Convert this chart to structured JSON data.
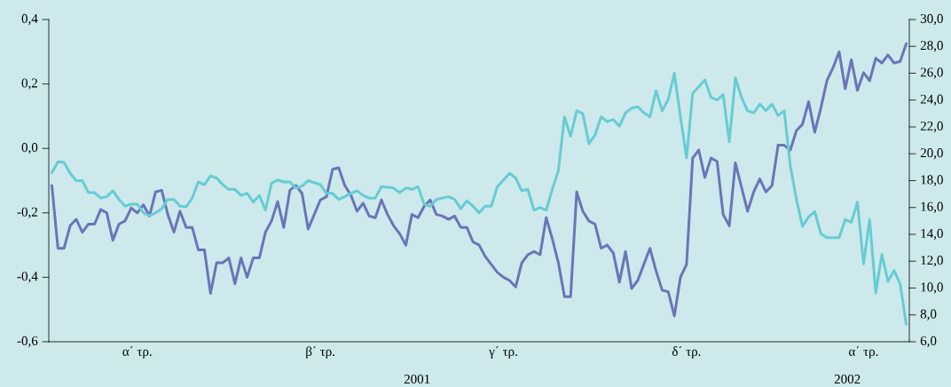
{
  "chart_data": {
    "type": "line",
    "categories": [
      null,
      null,
      null,
      null,
      null,
      null,
      null,
      null,
      null,
      null,
      null,
      null,
      null,
      null,
      "α΄ τρ.",
      null,
      null,
      null,
      null,
      null,
      null,
      null,
      null,
      null,
      null,
      null,
      null,
      null,
      null,
      null,
      null,
      null,
      null,
      null,
      null,
      null,
      null,
      null,
      null,
      null,
      null,
      null,
      null,
      null,
      "β΄ τρ.",
      null,
      null,
      null,
      null,
      null,
      null,
      null,
      null,
      null,
      null,
      null,
      null,
      null,
      null,
      null,
      null,
      null,
      null,
      null,
      null,
      null,
      null,
      null,
      null,
      null,
      null,
      null,
      null,
      null,
      "γ΄ τρ.",
      null,
      null,
      null,
      null,
      null,
      null,
      null,
      null,
      null,
      null,
      null,
      null,
      null,
      null,
      null,
      null,
      null,
      null,
      null,
      null,
      null,
      null,
      null,
      null,
      null,
      null,
      null,
      null,
      null,
      "δ΄ τρ.",
      null,
      null,
      null,
      null,
      null,
      null,
      null,
      null,
      null,
      null,
      null,
      null,
      null,
      null,
      null,
      null,
      null,
      null,
      null,
      null,
      null,
      null,
      null,
      null,
      null,
      null,
      null,
      null,
      "α΄ τρ.",
      null,
      null,
      null,
      null,
      null,
      null,
      null
    ],
    "ylim": [
      -0.6,
      0.4
    ],
    "yticks": [
      {
        "value": -0.6,
        "label": "-0,6"
      },
      {
        "value": -0.4,
        "label": "-0,4"
      },
      {
        "value": -0.2,
        "label": "-0,2"
      },
      {
        "value": 0.0,
        "label": "0,0"
      },
      {
        "value": 0.2,
        "label": "0,2"
      },
      {
        "value": 0.4,
        "label": "0,4"
      }
    ],
    "y2lim": [
      6,
      30
    ],
    "y2ticks": [
      {
        "value": 6,
        "label": "6,0"
      },
      {
        "value": 8,
        "label": "8,0"
      },
      {
        "value": 10,
        "label": "10,0"
      },
      {
        "value": 12,
        "label": "12,0"
      },
      {
        "value": 14,
        "label": "14,0"
      },
      {
        "value": 16,
        "label": "16,0"
      },
      {
        "value": 18,
        "label": "18,0"
      },
      {
        "value": 20,
        "label": "20,0"
      },
      {
        "value": 22,
        "label": "22,0"
      },
      {
        "value": 24,
        "label": "24,0"
      },
      {
        "value": 26,
        "label": "26,0"
      },
      {
        "value": 28,
        "label": "28,0"
      },
      {
        "value": 30,
        "label": "30,0"
      }
    ],
    "annotations": [
      "2001",
      "2002"
    ],
    "series": [
      {
        "color": "#6b74b8",
        "values": [
          -0.115,
          -0.31,
          -0.31,
          -0.24,
          -0.22,
          -0.26,
          -0.235,
          -0.235,
          -0.19,
          -0.2,
          -0.285,
          -0.235,
          -0.225,
          -0.185,
          -0.2,
          -0.175,
          -0.21,
          -0.135,
          -0.13,
          -0.205,
          -0.26,
          -0.195,
          -0.245,
          -0.245,
          -0.315,
          -0.315,
          -0.45,
          -0.355,
          -0.355,
          -0.34,
          -0.42,
          -0.34,
          -0.4,
          -0.34,
          -0.34,
          -0.26,
          -0.225,
          -0.165,
          -0.245,
          -0.13,
          -0.115,
          -0.14,
          -0.25,
          -0.205,
          -0.16,
          -0.15,
          -0.065,
          -0.06,
          -0.115,
          -0.145,
          -0.195,
          -0.17,
          -0.21,
          -0.215,
          -0.16,
          -0.205,
          -0.24,
          -0.265,
          -0.3,
          -0.205,
          -0.215,
          -0.18,
          -0.16,
          -0.205,
          -0.21,
          -0.22,
          -0.21,
          -0.245,
          -0.245,
          -0.29,
          -0.3,
          -0.335,
          -0.36,
          -0.385,
          -0.4,
          -0.41,
          -0.43,
          -0.355,
          -0.33,
          -0.32,
          -0.33,
          -0.215,
          -0.28,
          -0.355,
          -0.46,
          -0.46,
          -0.135,
          -0.195,
          -0.225,
          -0.235,
          -0.31,
          -0.3,
          -0.325,
          -0.415,
          -0.32,
          -0.435,
          -0.41,
          -0.36,
          -0.31,
          -0.38,
          -0.44,
          -0.445,
          -0.52,
          -0.4,
          -0.36,
          -0.03,
          -0.005,
          -0.09,
          -0.03,
          -0.04,
          -0.205,
          -0.24,
          -0.045,
          -0.12,
          -0.195,
          -0.135,
          -0.095,
          -0.135,
          -0.115,
          0.01,
          0.01,
          -0.005,
          0.055,
          0.075,
          0.145,
          0.05,
          0.125,
          0.21,
          0.25,
          0.3,
          0.185,
          0.275,
          0.18,
          0.235,
          0.21,
          0.28,
          0.265,
          0.29,
          0.265,
          0.27,
          0.325
        ]
      },
      {
        "color": "#66ccd3",
        "axis": "y2",
        "values": [
          18.6,
          19.4,
          19.35,
          18.55,
          18.0,
          18.0,
          17.1,
          17.1,
          16.7,
          16.8,
          17.25,
          16.6,
          16.1,
          16.25,
          16.25,
          15.6,
          15.4,
          15.6,
          15.9,
          16.6,
          16.6,
          16.1,
          16.05,
          16.7,
          17.9,
          17.7,
          18.35,
          18.2,
          17.7,
          17.35,
          17.35,
          16.9,
          17.05,
          16.4,
          16.9,
          15.8,
          17.8,
          18.05,
          17.9,
          17.9,
          17.45,
          17.6,
          18.0,
          17.85,
          17.7,
          17.05,
          17.05,
          16.6,
          16.8,
          17.05,
          17.25,
          16.9,
          16.7,
          16.7,
          17.55,
          17.5,
          17.45,
          17.1,
          17.45,
          17.35,
          17.55,
          16.25,
          16.1,
          16.6,
          16.7,
          16.8,
          16.6,
          15.9,
          16.5,
          16.1,
          15.6,
          16.1,
          16.1,
          17.55,
          18.05,
          18.55,
          18.2,
          17.25,
          17.35,
          15.8,
          16.0,
          15.8,
          17.35,
          18.75,
          22.75,
          21.3,
          23.2,
          23.0,
          20.75,
          21.4,
          22.75,
          22.4,
          22.55,
          22.05,
          23.05,
          23.4,
          23.5,
          23.05,
          22.75,
          24.7,
          23.2,
          24.05,
          26.0,
          22.75,
          19.7,
          24.5,
          25.0,
          25.5,
          24.2,
          24.0,
          24.4,
          20.9,
          25.65,
          24.2,
          23.2,
          23.05,
          23.7,
          23.2,
          23.7,
          22.85,
          23.2,
          19.1,
          16.6,
          14.6,
          15.3,
          15.7,
          14.05,
          13.75,
          13.75,
          13.75,
          15.1,
          14.9,
          16.4,
          11.8,
          15.1,
          9.65,
          12.5,
          10.5,
          11.3,
          10.3,
          7.3
        ]
      }
    ]
  }
}
